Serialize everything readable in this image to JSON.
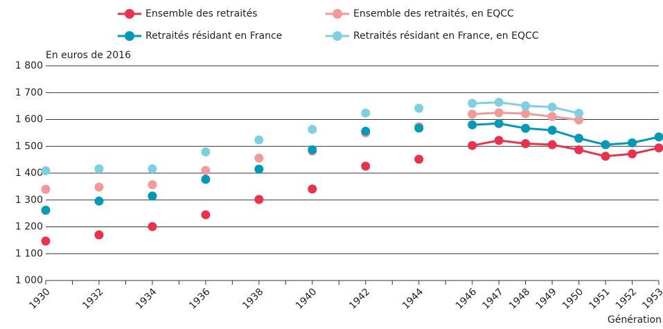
{
  "chart_data": {
    "type": "line",
    "ylabel": "En euros de 2016",
    "xlabel": "Génération",
    "x": [
      1930,
      1931,
      1932,
      1933,
      1934,
      1935,
      1936,
      1937,
      1938,
      1939,
      1940,
      1941,
      1942,
      1943,
      1944,
      1945,
      1946,
      1947,
      1948,
      1949,
      1950,
      1951,
      1952,
      1953
    ],
    "series": [
      {
        "name": "Ensemble des retraités",
        "color": "#e8334f",
        "values": [
          1147,
          null,
          1170,
          null,
          1201,
          null,
          1245,
          null,
          1302,
          null,
          1341,
          null,
          1426,
          null,
          1452,
          null,
          1503,
          1522,
          1510,
          1506,
          1487,
          1463,
          1472,
          1494
        ]
      },
      {
        "name": "Ensemble des retraités, en EQCC",
        "color": "#f09a9a",
        "values": [
          1340,
          null,
          1348,
          null,
          1357,
          null,
          1410,
          null,
          1456,
          null,
          1482,
          null,
          1550,
          null,
          1573,
          null,
          1620,
          1625,
          1622,
          1611,
          1598,
          null,
          null,
          null
        ]
      },
      {
        "name": "Retraités résidant en France",
        "color": "#0099b5",
        "values": [
          1262,
          null,
          1296,
          null,
          1315,
          null,
          1377,
          null,
          1415,
          null,
          1487,
          null,
          1556,
          null,
          1568,
          null,
          1580,
          1585,
          1567,
          1560,
          1530,
          1506,
          1513,
          1535
        ]
      },
      {
        "name": "Retraités résidant en France, en EQCC",
        "color": "#7ecfe0",
        "values": [
          1409,
          null,
          1416,
          null,
          1416,
          null,
          1479,
          null,
          1524,
          null,
          1563,
          null,
          1624,
          null,
          1642,
          null,
          1660,
          1664,
          1651,
          1646,
          1623,
          null,
          null,
          null
        ]
      }
    ],
    "xlim": [
      1930,
      1953
    ],
    "xticks": [
      1930,
      1932,
      1934,
      1936,
      1938,
      1940,
      1942,
      1944,
      1946,
      1947,
      1948,
      1949,
      1950,
      1951,
      1952,
      1953
    ],
    "xminor": [
      1931,
      1933,
      1935,
      1937,
      1939,
      1941,
      1943,
      1945
    ],
    "ylim": [
      1000,
      1800
    ],
    "yticks": [
      {
        "value": 1000,
        "label": "1 000"
      },
      {
        "value": 1100,
        "label": "1 100"
      },
      {
        "value": 1200,
        "label": "1 200"
      },
      {
        "value": 1300,
        "label": "1 300"
      },
      {
        "value": 1400,
        "label": "1 400"
      },
      {
        "value": 1500,
        "label": "1 500"
      },
      {
        "value": 1600,
        "label": "1 600"
      },
      {
        "value": 1700,
        "label": "1 700"
      },
      {
        "value": 1800,
        "label": "1 800"
      }
    ],
    "grid": true
  }
}
